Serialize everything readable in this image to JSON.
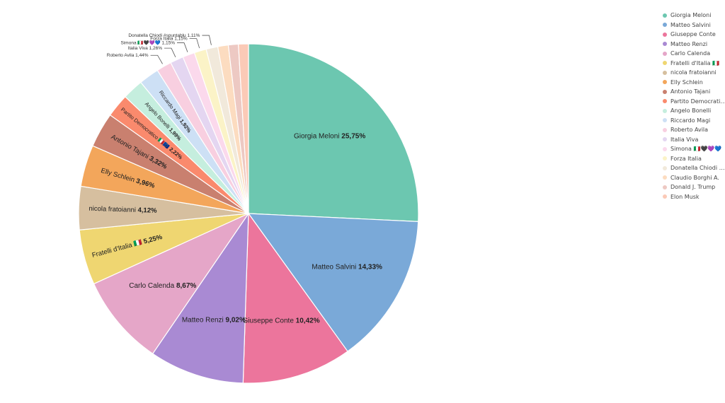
{
  "chart_data": {
    "type": "pie",
    "title": "",
    "legend_position": "top-right",
    "slices": [
      {
        "label": "Giorgia Meloni",
        "value": 25.75,
        "value_label": "25,75%",
        "color": "#6cc7b0"
      },
      {
        "label": "Matteo Salvini",
        "value": 14.33,
        "value_label": "14,33%",
        "color": "#7aa9d8"
      },
      {
        "label": "Giuseppe Conte",
        "value": 10.42,
        "value_label": "10,42%",
        "color": "#ec759c"
      },
      {
        "label": "Matteo Renzi",
        "value": 9.02,
        "value_label": "9,02%",
        "color": "#a98ad3"
      },
      {
        "label": "Carlo Calenda",
        "value": 8.67,
        "value_label": "8,67%",
        "color": "#e5a6c8"
      },
      {
        "label": "Fratelli d'Italia 🇮🇹",
        "value": 5.25,
        "value_label": "5,25%",
        "color": "#efd671"
      },
      {
        "label": "nicola fratoianni",
        "value": 4.12,
        "value_label": "4,12%",
        "color": "#d6bf9f"
      },
      {
        "label": "Elly Schlein",
        "value": 3.96,
        "value_label": "3,96%",
        "color": "#f3a65b"
      },
      {
        "label": "Antonio Tajani",
        "value": 3.32,
        "value_label": "3,32%",
        "color": "#c9806f"
      },
      {
        "label": "Partito Democratico 🇮🇹🇪🇺",
        "legend_label": "Partito Democratico ...",
        "value": 2.22,
        "value_label": "2,22%",
        "color": "#fa8a6d"
      },
      {
        "label": "Angelo Bonelli",
        "value": 1.99,
        "value_label": "1,99%",
        "color": "#c5eede"
      },
      {
        "label": "Riccardo Magi",
        "value": 1.92,
        "value_label": "1,92%",
        "color": "#cde0f5"
      },
      {
        "label": "Roberto Avila",
        "value": 1.44,
        "value_label": "1,44%",
        "color": "#f8cfe0"
      },
      {
        "label": "Italia Viva",
        "value": 1.26,
        "value_label": "1,26%",
        "color": "#e4d6f1"
      },
      {
        "label": "Simona 🇮🇹🖤💜💙",
        "value": 1.15,
        "value_label": "1,15%",
        "color": "#fbd9ec"
      },
      {
        "label": "Forza Italia",
        "value": 1.15,
        "value_label": "1,15%",
        "color": "#fbf3c7"
      },
      {
        "label": "Donatella Chiodi #spuntablu",
        "legend_label": "Donatella Chiodi #sp...",
        "value": 1.11,
        "value_label": "1,11%",
        "color": "#f1e9db"
      },
      {
        "label": "Claudio Borghi A.",
        "value": 1.0,
        "value_label": "",
        "color": "#fcdcc0"
      },
      {
        "label": "Donald J. Trump",
        "value": 0.95,
        "value_label": "",
        "color": "#edc9c3"
      },
      {
        "label": "Elon Musk",
        "value": 0.95,
        "value_label": "",
        "color": "#fbcab7"
      }
    ]
  }
}
